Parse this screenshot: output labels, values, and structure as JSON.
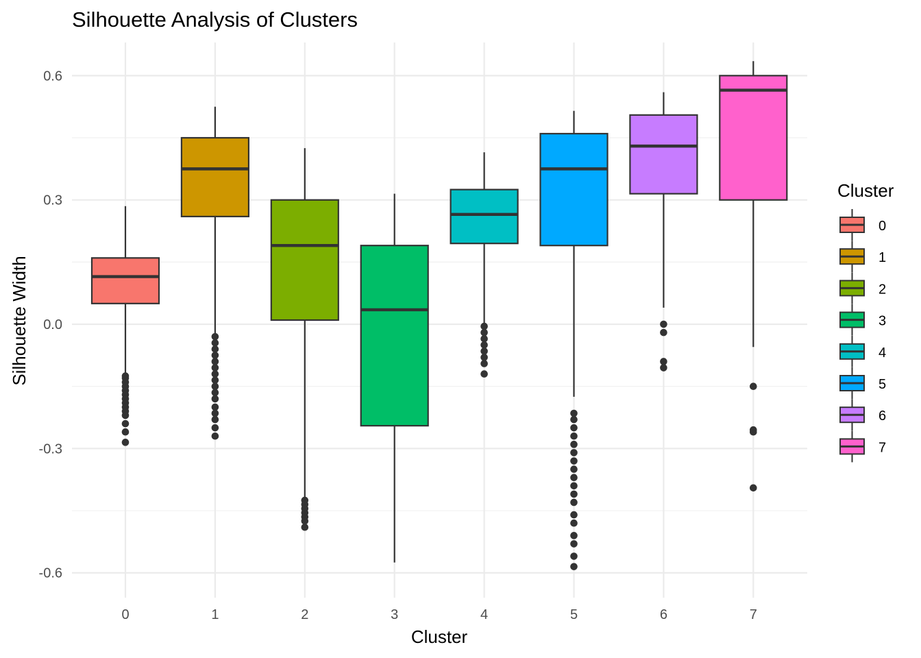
{
  "chart_data": {
    "type": "boxplot",
    "title": "Silhouette Analysis of Clusters",
    "xlabel": "Cluster",
    "ylabel": "Silhouette Width",
    "ylim": [
      -0.66,
      0.68
    ],
    "yticks": [
      -0.6,
      -0.3,
      0.0,
      0.3,
      0.6
    ],
    "ytick_labels": [
      "-0.6",
      "-0.3",
      "0.0",
      "0.3",
      "0.6"
    ],
    "grid": true,
    "legend": {
      "title": "Cluster",
      "position": "right"
    },
    "categories": [
      "0",
      "1",
      "2",
      "3",
      "4",
      "5",
      "6",
      "7"
    ],
    "colors": [
      "#F8766D",
      "#CD9600",
      "#7CAE00",
      "#00BE67",
      "#00BFC4",
      "#00A9FF",
      "#C77CFF",
      "#FF61CC"
    ],
    "boxes": [
      {
        "cluster": "0",
        "whisker_low": -0.12,
        "q1": 0.05,
        "median": 0.115,
        "q3": 0.16,
        "whisker_high": 0.285,
        "outliers": [
          -0.125,
          -0.13,
          -0.14,
          -0.15,
          -0.16,
          -0.17,
          -0.18,
          -0.19,
          -0.2,
          -0.21,
          -0.22,
          -0.24,
          -0.26,
          -0.285
        ]
      },
      {
        "cluster": "1",
        "whisker_low": -0.03,
        "q1": 0.26,
        "median": 0.375,
        "q3": 0.45,
        "whisker_high": 0.525,
        "outliers": [
          -0.03,
          -0.045,
          -0.06,
          -0.075,
          -0.09,
          -0.105,
          -0.12,
          -0.135,
          -0.15,
          -0.165,
          -0.18,
          -0.2,
          -0.215,
          -0.23,
          -0.25,
          -0.27
        ]
      },
      {
        "cluster": "2",
        "whisker_low": -0.42,
        "q1": 0.01,
        "median": 0.19,
        "q3": 0.3,
        "whisker_high": 0.425,
        "outliers": [
          -0.425,
          -0.435,
          -0.445,
          -0.455,
          -0.465,
          -0.475,
          -0.49
        ]
      },
      {
        "cluster": "3",
        "whisker_low": -0.575,
        "q1": -0.245,
        "median": 0.035,
        "q3": 0.19,
        "whisker_high": 0.315,
        "outliers": []
      },
      {
        "cluster": "4",
        "whisker_low": 0.0,
        "q1": 0.195,
        "median": 0.265,
        "q3": 0.325,
        "whisker_high": 0.415,
        "outliers": [
          -0.005,
          -0.02,
          -0.035,
          -0.05,
          -0.065,
          -0.08,
          -0.095,
          -0.12
        ]
      },
      {
        "cluster": "5",
        "whisker_low": -0.175,
        "q1": 0.19,
        "median": 0.375,
        "q3": 0.46,
        "whisker_high": 0.515,
        "outliers": [
          -0.215,
          -0.23,
          -0.25,
          -0.27,
          -0.29,
          -0.31,
          -0.33,
          -0.35,
          -0.37,
          -0.39,
          -0.41,
          -0.43,
          -0.46,
          -0.48,
          -0.51,
          -0.53,
          -0.56,
          -0.585
        ]
      },
      {
        "cluster": "6",
        "whisker_low": 0.04,
        "q1": 0.315,
        "median": 0.43,
        "q3": 0.505,
        "whisker_high": 0.56,
        "outliers": [
          0.0,
          -0.02,
          -0.09,
          -0.105
        ]
      },
      {
        "cluster": "7",
        "whisker_low": -0.055,
        "q1": 0.3,
        "median": 0.565,
        "q3": 0.6,
        "whisker_high": 0.635,
        "outliers": [
          -0.15,
          -0.255,
          -0.26,
          -0.395
        ]
      }
    ]
  }
}
